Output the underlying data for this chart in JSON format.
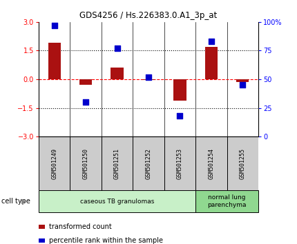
{
  "title": "GDS4256 / Hs.226383.0.A1_3p_at",
  "samples": [
    "GSM501249",
    "GSM501250",
    "GSM501251",
    "GSM501252",
    "GSM501253",
    "GSM501254",
    "GSM501255"
  ],
  "transformed_count": [
    1.9,
    -0.3,
    0.6,
    -0.05,
    -1.1,
    1.7,
    -0.15
  ],
  "percentile_rank": [
    97,
    30,
    77,
    52,
    18,
    83,
    45
  ],
  "ylim_left": [
    -3,
    3
  ],
  "ylim_right": [
    0,
    100
  ],
  "left_ticks": [
    -3,
    -1.5,
    0,
    1.5,
    3
  ],
  "right_ticks": [
    0,
    25,
    50,
    75,
    100
  ],
  "hlines": [
    1.5,
    -1.5
  ],
  "zero_line": 0,
  "bar_color": "#aa1111",
  "dot_color": "#0000cc",
  "dot_size": 40,
  "background_color": "#ffffff",
  "cell_type_groups": [
    {
      "label": "caseous TB granulomas",
      "start": 0,
      "end": 5,
      "color": "#c8f0c8"
    },
    {
      "label": "normal lung\nparenchyma",
      "start": 5,
      "end": 7,
      "color": "#90d890"
    }
  ],
  "cell_type_label": "cell type",
  "legend_items": [
    {
      "color": "#aa1111",
      "label": "transformed count"
    },
    {
      "color": "#0000cc",
      "label": "percentile rank within the sample"
    }
  ],
  "sample_box_color": "#cccccc",
  "bar_width": 0.4
}
